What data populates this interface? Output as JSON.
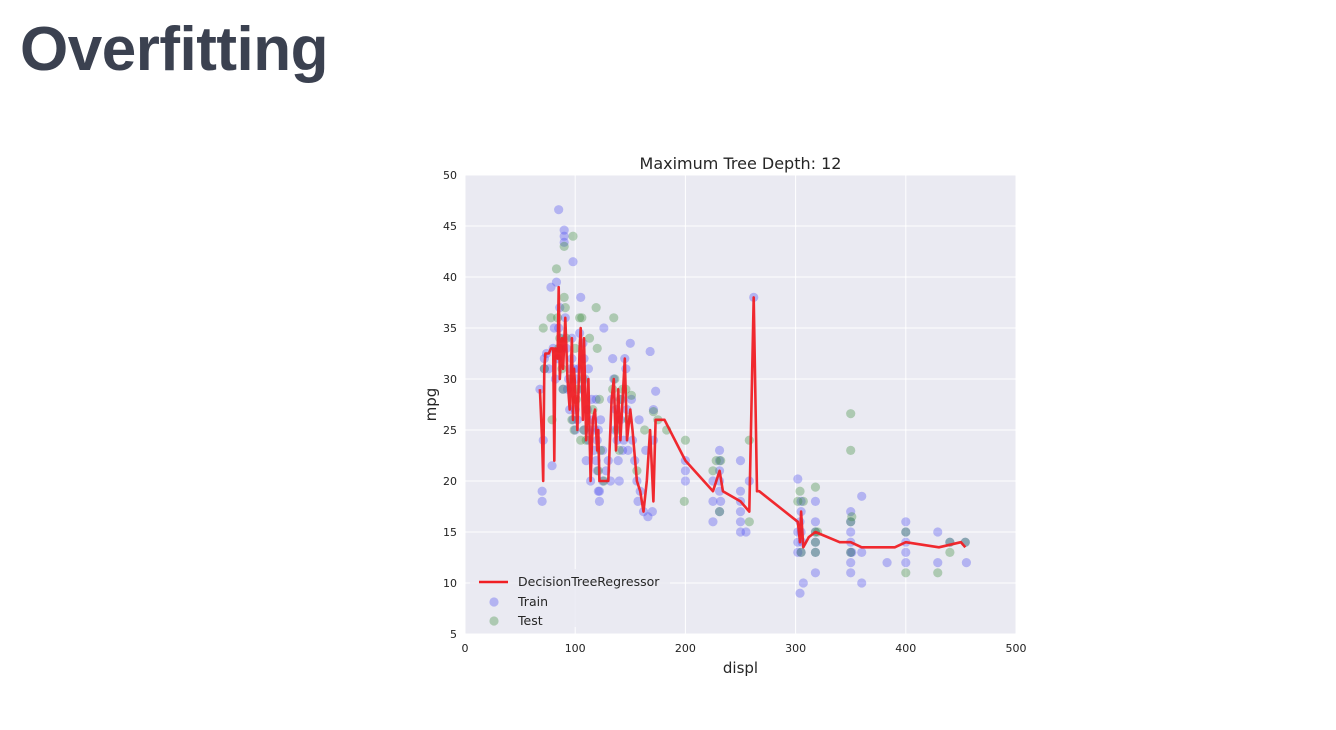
{
  "slide": {
    "title": "Overfitting"
  },
  "colors": {
    "plot_bg": "#eaeaf2",
    "grid": "#ffffff",
    "train": "#4c4cf0",
    "test": "#3d8b3d",
    "line": "#f01f24",
    "title_text": "#3b4150"
  },
  "chart_data": {
    "type": "scatter",
    "title": "Maximum Tree Depth: 12",
    "xlabel": "displ",
    "ylabel": "mpg",
    "xlim": [
      0,
      500
    ],
    "ylim": [
      5,
      50
    ],
    "xticks": [
      "0",
      "100",
      "200",
      "300",
      "400",
      "500"
    ],
    "yticks": [
      "5",
      "10",
      "15",
      "20",
      "25",
      "30",
      "35",
      "40",
      "45",
      "50"
    ],
    "grid": true,
    "legend": {
      "placement": "lower-left"
    },
    "series": [
      {
        "name": "DecisionTreeRegressor",
        "kind": "line",
        "points": [
          [
            68,
            29
          ],
          [
            70,
            24
          ],
          [
            71,
            20
          ],
          [
            72,
            31
          ],
          [
            73,
            32.5
          ],
          [
            76,
            32.5
          ],
          [
            78,
            33
          ],
          [
            80,
            33
          ],
          [
            81,
            22
          ],
          [
            82,
            33
          ],
          [
            84,
            32
          ],
          [
            85,
            39
          ],
          [
            86,
            30
          ],
          [
            88,
            34
          ],
          [
            89,
            31
          ],
          [
            91,
            36
          ],
          [
            93,
            30
          ],
          [
            95,
            27
          ],
          [
            97,
            34
          ],
          [
            98,
            26
          ],
          [
            99,
            31
          ],
          [
            100,
            29
          ],
          [
            102,
            25
          ],
          [
            104,
            33
          ],
          [
            105,
            35
          ],
          [
            107,
            26
          ],
          [
            108,
            34
          ],
          [
            110,
            24
          ],
          [
            112,
            30
          ],
          [
            114,
            20
          ],
          [
            116,
            26
          ],
          [
            118,
            27
          ],
          [
            120,
            23
          ],
          [
            121,
            25
          ],
          [
            122,
            20
          ],
          [
            130,
            20
          ],
          [
            133,
            28
          ],
          [
            135,
            30
          ],
          [
            137,
            23
          ],
          [
            139,
            29
          ],
          [
            141,
            24
          ],
          [
            143,
            28
          ],
          [
            145,
            32
          ],
          [
            147,
            24
          ],
          [
            150,
            27
          ],
          [
            152,
            25
          ],
          [
            156,
            20
          ],
          [
            159,
            19
          ],
          [
            162,
            17
          ],
          [
            165,
            20
          ],
          [
            168,
            25
          ],
          [
            171,
            18
          ],
          [
            173,
            26
          ],
          [
            181,
            26
          ],
          [
            200,
            22
          ],
          [
            225,
            19
          ],
          [
            228,
            20
          ],
          [
            231,
            21
          ],
          [
            234,
            19
          ],
          [
            250,
            18
          ],
          [
            258,
            17
          ],
          [
            262,
            38
          ],
          [
            265,
            19
          ],
          [
            267,
            19
          ],
          [
            302,
            16
          ],
          [
            304,
            14
          ],
          [
            305,
            17
          ],
          [
            307,
            13.5
          ],
          [
            312,
            14.5
          ],
          [
            318,
            15
          ],
          [
            340,
            14
          ],
          [
            350,
            14
          ],
          [
            360,
            13.5
          ],
          [
            380,
            13.5
          ],
          [
            390,
            13.5
          ],
          [
            400,
            14
          ],
          [
            430,
            13.5
          ],
          [
            450,
            14
          ],
          [
            454,
            13.5
          ]
        ]
      },
      {
        "name": "Train",
        "kind": "scatter",
        "color": "#4c4cf0",
        "points": [
          [
            68,
            29
          ],
          [
            70,
            18
          ],
          [
            70,
            19
          ],
          [
            71,
            24
          ],
          [
            72,
            32
          ],
          [
            72,
            31
          ],
          [
            74,
            32.5
          ],
          [
            76,
            31
          ],
          [
            78,
            39
          ],
          [
            79,
            21.5
          ],
          [
            80,
            33
          ],
          [
            81,
            35
          ],
          [
            82,
            30
          ],
          [
            83,
            39.5
          ],
          [
            84,
            32
          ],
          [
            85,
            35
          ],
          [
            85,
            46.6
          ],
          [
            86,
            37
          ],
          [
            87,
            33
          ],
          [
            88,
            34
          ],
          [
            89,
            29
          ],
          [
            90,
            43.4
          ],
          [
            90,
            44.6
          ],
          [
            90,
            44
          ],
          [
            91,
            36
          ],
          [
            92,
            33
          ],
          [
            93,
            29
          ],
          [
            94,
            30
          ],
          [
            95,
            27
          ],
          [
            96,
            31
          ],
          [
            97,
            32
          ],
          [
            97,
            34
          ],
          [
            98,
            26
          ],
          [
            98,
            41.5
          ],
          [
            99,
            31
          ],
          [
            100,
            27
          ],
          [
            100,
            25
          ],
          [
            101,
            30
          ],
          [
            102,
            26
          ],
          [
            103,
            31
          ],
          [
            104,
            34.5
          ],
          [
            105,
            38
          ],
          [
            106,
            29
          ],
          [
            107,
            33.5
          ],
          [
            108,
            32
          ],
          [
            108,
            25
          ],
          [
            109,
            30
          ],
          [
            110,
            22
          ],
          [
            111,
            27
          ],
          [
            112,
            31
          ],
          [
            112,
            24
          ],
          [
            113,
            25
          ],
          [
            114,
            20
          ],
          [
            115,
            28
          ],
          [
            116,
            26
          ],
          [
            117,
            23
          ],
          [
            118,
            25
          ],
          [
            119,
            28
          ],
          [
            119,
            22
          ],
          [
            120,
            24
          ],
          [
            120,
            21
          ],
          [
            121,
            19
          ],
          [
            121,
            25
          ],
          [
            122,
            18
          ],
          [
            122,
            19
          ],
          [
            123,
            26
          ],
          [
            125,
            23
          ],
          [
            125,
            20
          ],
          [
            126,
            35
          ],
          [
            128,
            21
          ],
          [
            130,
            22
          ],
          [
            132,
            20
          ],
          [
            133,
            28
          ],
          [
            134,
            32
          ],
          [
            135,
            30
          ],
          [
            136,
            25
          ],
          [
            137,
            27
          ],
          [
            138,
            24
          ],
          [
            139,
            22
          ],
          [
            140,
            20
          ],
          [
            141,
            26
          ],
          [
            142,
            28
          ],
          [
            143,
            23
          ],
          [
            144,
            24
          ],
          [
            145,
            32
          ],
          [
            146,
            31
          ],
          [
            147,
            27
          ],
          [
            148,
            23
          ],
          [
            150,
            33.5
          ],
          [
            151,
            28
          ],
          [
            152,
            24
          ],
          [
            154,
            22
          ],
          [
            156,
            20
          ],
          [
            157,
            18
          ],
          [
            158,
            26
          ],
          [
            159,
            19
          ],
          [
            162,
            17
          ],
          [
            164,
            23
          ],
          [
            166,
            16.5
          ],
          [
            168,
            32.7
          ],
          [
            170,
            17
          ],
          [
            171,
            27
          ],
          [
            171,
            24
          ],
          [
            173,
            28.8
          ],
          [
            200,
            20
          ],
          [
            200,
            21
          ],
          [
            200,
            22
          ],
          [
            225,
            16
          ],
          [
            225,
            18
          ],
          [
            225,
            20
          ],
          [
            231,
            17
          ],
          [
            231,
            19
          ],
          [
            231,
            21
          ],
          [
            231,
            22
          ],
          [
            231,
            23
          ],
          [
            231,
            20
          ],
          [
            232,
            18
          ],
          [
            250,
            19
          ],
          [
            250,
            22
          ],
          [
            250,
            18
          ],
          [
            250,
            17
          ],
          [
            250,
            16
          ],
          [
            250,
            15
          ],
          [
            255,
            15
          ],
          [
            258,
            20
          ],
          [
            262,
            38
          ],
          [
            302,
            20.2
          ],
          [
            302,
            13
          ],
          [
            302,
            14
          ],
          [
            302,
            15
          ],
          [
            304,
            16
          ],
          [
            304,
            9
          ],
          [
            305,
            18
          ],
          [
            305,
            17
          ],
          [
            305,
            15
          ],
          [
            305,
            13
          ],
          [
            306,
            14
          ],
          [
            307,
            10
          ],
          [
            318,
            13
          ],
          [
            318,
            14
          ],
          [
            318,
            15
          ],
          [
            318,
            16
          ],
          [
            318,
            18
          ],
          [
            318,
            11
          ],
          [
            350,
            13
          ],
          [
            350,
            14
          ],
          [
            350,
            15
          ],
          [
            350,
            16
          ],
          [
            350,
            17
          ],
          [
            350,
            12
          ],
          [
            350,
            11
          ],
          [
            351,
            13
          ],
          [
            360,
            10
          ],
          [
            360,
            18.5
          ],
          [
            360,
            13
          ],
          [
            383,
            12
          ],
          [
            400,
            12
          ],
          [
            400,
            13
          ],
          [
            400,
            14
          ],
          [
            400,
            15
          ],
          [
            400,
            16
          ],
          [
            429,
            12
          ],
          [
            429,
            15
          ],
          [
            440,
            14
          ],
          [
            454,
            14
          ],
          [
            455,
            12
          ]
        ]
      },
      {
        "name": "Test",
        "kind": "scatter",
        "color": "#3d8b3d",
        "points": [
          [
            71,
            35
          ],
          [
            72,
            31
          ],
          [
            78,
            36
          ],
          [
            79,
            26
          ],
          [
            83,
            40.8
          ],
          [
            84,
            36
          ],
          [
            85,
            33
          ],
          [
            86,
            34
          ],
          [
            88,
            31
          ],
          [
            89,
            29
          ],
          [
            90,
            38
          ],
          [
            91,
            37
          ],
          [
            90,
            43
          ],
          [
            92,
            34
          ],
          [
            96,
            30
          ],
          [
            97,
            26
          ],
          [
            98,
            44
          ],
          [
            99,
            25
          ],
          [
            100,
            33
          ],
          [
            101,
            28
          ],
          [
            102,
            29
          ],
          [
            104,
            36
          ],
          [
            105,
            24
          ],
          [
            106,
            36
          ],
          [
            107,
            30
          ],
          [
            108,
            25
          ],
          [
            110,
            24
          ],
          [
            113,
            34
          ],
          [
            116,
            27
          ],
          [
            119,
            37
          ],
          [
            120,
            33
          ],
          [
            121,
            21
          ],
          [
            122,
            28
          ],
          [
            123,
            23
          ],
          [
            126,
            20
          ],
          [
            134,
            29
          ],
          [
            135,
            36
          ],
          [
            136,
            30
          ],
          [
            138,
            25
          ],
          [
            140,
            23
          ],
          [
            141,
            28
          ],
          [
            143,
            29
          ],
          [
            146,
            29
          ],
          [
            148,
            26
          ],
          [
            151,
            28.4
          ],
          [
            156,
            21
          ],
          [
            163,
            25
          ],
          [
            171,
            26.8
          ],
          [
            175,
            26
          ],
          [
            183,
            25
          ],
          [
            199,
            18
          ],
          [
            200,
            24
          ],
          [
            225,
            21
          ],
          [
            228,
            22
          ],
          [
            231,
            17
          ],
          [
            232,
            22
          ],
          [
            258,
            16
          ],
          [
            258,
            24
          ],
          [
            302,
            18
          ],
          [
            304,
            19
          ],
          [
            305,
            13
          ],
          [
            307,
            18
          ],
          [
            318,
            19.4
          ],
          [
            318,
            14
          ],
          [
            318,
            15
          ],
          [
            318,
            13
          ],
          [
            320,
            15
          ],
          [
            350,
            26.6
          ],
          [
            350,
            23
          ],
          [
            350,
            13
          ],
          [
            350,
            16
          ],
          [
            351,
            16.5
          ],
          [
            400,
            11
          ],
          [
            400,
            15
          ],
          [
            429,
            11
          ],
          [
            440,
            13
          ],
          [
            440,
            14
          ],
          [
            454,
            14
          ]
        ]
      }
    ]
  }
}
